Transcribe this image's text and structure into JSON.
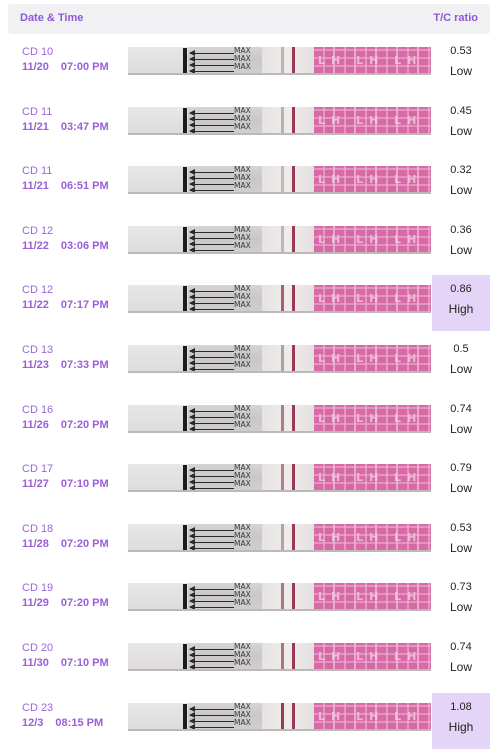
{
  "header": {
    "left": "Date & Time",
    "right": "T/C ratio"
  },
  "strip_text": {
    "max": "MAX",
    "lh": "LH"
  },
  "rows": [
    {
      "cd": "CD 10",
      "date": "11/20",
      "time": "07:00 PM",
      "ratio": "0.53",
      "level": "Low",
      "high": false,
      "t_color": "#bdb3b4"
    },
    {
      "cd": "CD 11",
      "date": "11/21",
      "time": "03:47 PM",
      "ratio": "0.45",
      "level": "Low",
      "high": false,
      "t_color": "#b9aeb0"
    },
    {
      "cd": "CD 11",
      "date": "11/21",
      "time": "06:51 PM",
      "ratio": "0.32",
      "level": "Low",
      "high": false,
      "t_color": "#c2b8b9"
    },
    {
      "cd": "CD 12",
      "date": "11/22",
      "time": "03:06 PM",
      "ratio": "0.36",
      "level": "Low",
      "high": false,
      "t_color": "#c0b4b6"
    },
    {
      "cd": "CD 12",
      "date": "11/22",
      "time": "07:17 PM",
      "ratio": "0.86",
      "level": "High",
      "high": true,
      "t_color": "#a8606f"
    },
    {
      "cd": "CD 13",
      "date": "11/23",
      "time": "07:33 PM",
      "ratio": "0.5",
      "level": "Low",
      "high": false,
      "t_color": "#b59ea3"
    },
    {
      "cd": "CD 16",
      "date": "11/26",
      "time": "07:20 PM",
      "ratio": "0.74",
      "level": "Low",
      "high": false,
      "t_color": "#ad7d88"
    },
    {
      "cd": "CD 17",
      "date": "11/27",
      "time": "07:10 PM",
      "ratio": "0.79",
      "level": "Low",
      "high": false,
      "t_color": "#b07f8a"
    },
    {
      "cd": "CD 18",
      "date": "11/28",
      "time": "07:20 PM",
      "ratio": "0.53",
      "level": "Low",
      "high": false,
      "t_color": "#b8a0a5"
    },
    {
      "cd": "CD 19",
      "date": "11/29",
      "time": "07:20 PM",
      "ratio": "0.73",
      "level": "Low",
      "high": false,
      "t_color": "#ad7784"
    },
    {
      "cd": "CD 20",
      "date": "11/30",
      "time": "07:10 PM",
      "ratio": "0.74",
      "level": "Low",
      "high": false,
      "t_color": "#ab7481"
    },
    {
      "cd": "CD 23",
      "date": "12/3",
      "time": "08:15 PM",
      "ratio": "1.08",
      "level": "High",
      "high": true,
      "t_color": "#9a3a52"
    }
  ]
}
